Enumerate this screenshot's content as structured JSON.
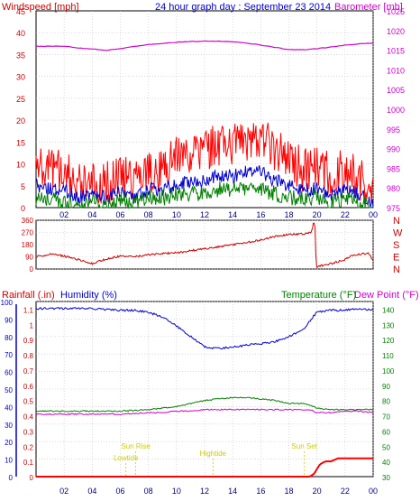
{
  "chart_data": [
    {
      "type": "line",
      "title": "24 hour graph day : September 23 2014",
      "left_axis_label": "Windspeed [mph]",
      "right_axis_label": "Barometer [mb]",
      "y_left_range": [
        0,
        45
      ],
      "y_left_ticks": [
        "0",
        "5",
        "10",
        "15",
        "20",
        "25",
        "30",
        "35",
        "40",
        "45"
      ],
      "y_right_range": [
        975,
        1025
      ],
      "y_right_ticks": [
        "975",
        "980",
        "985",
        "990",
        "995",
        "1000",
        "1005",
        "1010",
        "1015",
        "1020",
        "1025"
      ],
      "x_ticks": [
        "02",
        "04",
        "06",
        "08",
        "10",
        "12",
        "14",
        "16",
        "18",
        "20",
        "22",
        "00"
      ],
      "grid": true,
      "colors": {
        "gust": "#ff0000",
        "average": "#0000cc",
        "low": "#008000",
        "barometer": "#cc00cc",
        "left_axis": "#cc0000",
        "right_axis": "#cc00cc"
      },
      "series": [
        {
          "name": "gust",
          "x": [
            0,
            1,
            2,
            3,
            4,
            5,
            6,
            7,
            8,
            9,
            10,
            11,
            12,
            13,
            14,
            15,
            16,
            17,
            18,
            19,
            20,
            21,
            22,
            23,
            24
          ],
          "values": [
            9,
            8,
            8,
            5,
            6,
            5,
            7,
            5,
            7,
            8,
            11,
            11,
            13,
            14,
            14,
            15,
            16,
            13,
            11,
            8,
            9,
            7,
            8,
            6,
            3
          ]
        },
        {
          "name": "average",
          "x": [
            0,
            1,
            2,
            3,
            4,
            5,
            6,
            7,
            8,
            9,
            10,
            11,
            12,
            13,
            14,
            15,
            16,
            17,
            18,
            19,
            20,
            21,
            22,
            23,
            24
          ],
          "values": [
            5,
            4,
            4,
            2,
            3,
            2,
            4,
            2,
            4,
            4,
            5,
            6,
            6,
            7,
            7,
            8,
            8,
            6,
            5,
            4,
            4,
            3,
            4,
            3,
            1
          ]
        },
        {
          "name": "low",
          "x": [
            0,
            1,
            2,
            3,
            4,
            5,
            6,
            7,
            8,
            9,
            10,
            11,
            12,
            13,
            14,
            15,
            16,
            17,
            18,
            19,
            20,
            21,
            22,
            23,
            24
          ],
          "values": [
            2,
            2,
            1,
            1,
            1,
            0,
            2,
            1,
            2,
            2,
            3,
            3,
            3,
            4,
            4,
            4,
            4,
            3,
            2,
            2,
            2,
            1,
            2,
            1,
            0
          ]
        },
        {
          "name": "barometer",
          "axis": "right",
          "x": [
            0,
            1,
            2,
            3,
            4,
            5,
            6,
            7,
            8,
            9,
            10,
            11,
            12,
            13,
            14,
            15,
            16,
            17,
            18,
            19,
            20,
            21,
            22,
            23,
            24
          ],
          "values": [
            1016,
            1016,
            1016,
            1015.6,
            1015.3,
            1015,
            1015.4,
            1015.9,
            1016.4,
            1016.7,
            1017,
            1017.2,
            1017.3,
            1017.3,
            1017.1,
            1016.8,
            1016.3,
            1015.7,
            1015.2,
            1015.1,
            1015.4,
            1015.8,
            1016.3,
            1016.6,
            1016.8
          ]
        }
      ]
    },
    {
      "type": "line",
      "left_axis_ticks": [
        "0",
        "90",
        "180",
        "270",
        "360"
      ],
      "y_left_range": [
        0,
        360
      ],
      "right_axis_ticks": [
        "N",
        "W",
        "S",
        "E",
        "N"
      ],
      "colors": {
        "direction": "#cc0000",
        "axis": "#cc0000"
      },
      "series": [
        {
          "name": "direction",
          "x": [
            0,
            1,
            2,
            3,
            4,
            5,
            6,
            7,
            8,
            9,
            10,
            11,
            12,
            13,
            14,
            15,
            16,
            17,
            18,
            19,
            19.6,
            19.75,
            19.85,
            19.95,
            20.1,
            21,
            22,
            22.5,
            23.2,
            23.7,
            24
          ],
          "values": [
            90,
            110,
            95,
            70,
            40,
            75,
            95,
            90,
            105,
            115,
            120,
            135,
            150,
            165,
            180,
            195,
            215,
            240,
            255,
            260,
            270,
            340,
            350,
            10,
            20,
            40,
            70,
            100,
            110,
            115,
            60
          ]
        }
      ]
    },
    {
      "type": "line",
      "left_axis_label_1": "Rainfall (.in)",
      "left_axis_label_2": "Humidity (%)",
      "right_axis_label_1": "Temperature (°F)",
      "right_axis_label_2": "Dew Point (°F)",
      "rain_ticks": [
        "0",
        "0.1",
        "0.2",
        "0.3",
        "0.4",
        "0.5",
        "0.6",
        "0.7",
        "0.8",
        "0.9",
        "1",
        "1.1"
      ],
      "humidity_ticks": [
        "0",
        "10",
        "20",
        "30",
        "40",
        "50",
        "60",
        "70",
        "80",
        "90",
        "100"
      ],
      "temp_ticks": [
        "30",
        "40",
        "50",
        "60",
        "70",
        "80",
        "90",
        "100",
        "110",
        "120",
        "130",
        "140"
      ],
      "y_left_range": [
        0,
        100
      ],
      "y_right_range": [
        30,
        145
      ],
      "x_ticks": [
        "02",
        "04",
        "06",
        "08",
        "10",
        "12",
        "14",
        "16",
        "18",
        "20",
        "22",
        "00"
      ],
      "grid": true,
      "colors": {
        "humidity": "#0000cc",
        "temperature": "#008000",
        "dewpoint": "#cc00cc",
        "rainfall": "#ff0000",
        "rain_axis": "#cc0000",
        "humidity_axis": "#0000cc",
        "temp_axis": "#008000",
        "dew_axis": "#cc00cc",
        "events": "#cccc00"
      },
      "series": [
        {
          "name": "humidity",
          "x": [
            0,
            2,
            4,
            6,
            7,
            8,
            9,
            10,
            11,
            12,
            13,
            14,
            15,
            16,
            17,
            18,
            19,
            19.6,
            20,
            21,
            22,
            23,
            24
          ],
          "values": [
            96,
            96,
            96,
            95,
            95,
            94,
            91,
            86,
            80,
            74,
            73,
            74,
            75,
            76,
            77,
            80,
            84,
            90,
            94,
            95,
            95,
            96,
            95
          ]
        },
        {
          "name": "temperature",
          "x": [
            0,
            2,
            4,
            6,
            8,
            9,
            10,
            11,
            12,
            13,
            14,
            15,
            16,
            17,
            18,
            19,
            19.5,
            20,
            21,
            22,
            23,
            24
          ],
          "values": [
            73,
            73,
            73,
            73,
            74,
            75,
            76,
            78,
            80,
            81,
            82,
            82,
            81,
            80,
            78,
            78,
            77,
            75,
            74,
            74,
            74,
            74
          ]
        },
        {
          "name": "dewpoint",
          "x": [
            0,
            2,
            4,
            6,
            8,
            9,
            10,
            11,
            12,
            13,
            14,
            15,
            16,
            17,
            18,
            19,
            19.5,
            20,
            21,
            22,
            23,
            24
          ],
          "values": [
            71,
            71,
            71,
            71,
            72,
            72,
            73,
            73,
            74,
            74,
            74,
            74,
            74,
            74,
            74,
            74,
            74,
            72,
            72,
            73,
            73,
            72
          ]
        },
        {
          "name": "rainfall",
          "axis": "rain",
          "x": [
            0,
            19.5,
            19.8,
            20.2,
            20.6,
            21,
            21.5,
            22,
            23,
            24
          ],
          "values": [
            0,
            0,
            0.02,
            0.08,
            0.1,
            0.1,
            0.12,
            0.12,
            0.12,
            0.12
          ]
        }
      ],
      "events": [
        {
          "label": "Lowtide",
          "x": 6.4
        },
        {
          "label": "Sun Rise",
          "x": 7.1
        },
        {
          "label": "Hightide",
          "x": 12.6
        },
        {
          "label": "Sun Set",
          "x": 19.1
        }
      ]
    }
  ]
}
